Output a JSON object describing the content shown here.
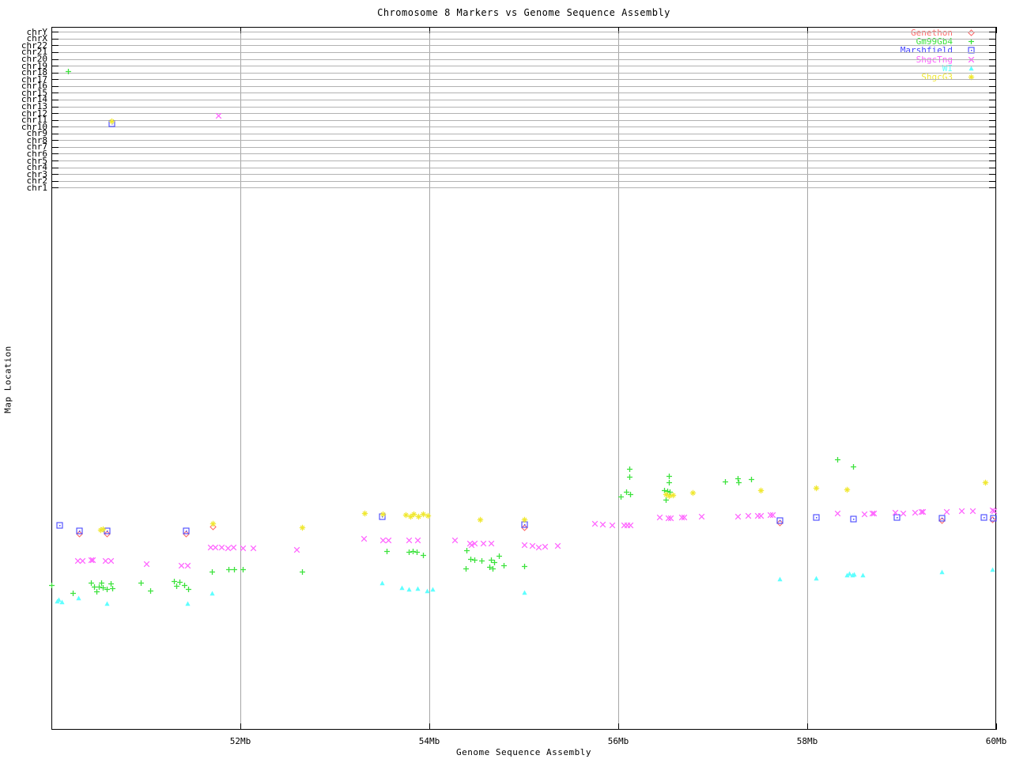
{
  "title": "Chromosome 8 Markers vs Genome Sequence Assembly",
  "axes": {
    "x_label": "Genome Sequence Assembly",
    "y_label": "Map Location",
    "x_ticks": [
      {
        "label": "52Mb",
        "mb": 52,
        "gridline": true
      },
      {
        "label": "54Mb",
        "mb": 54,
        "gridline": true
      },
      {
        "label": "56Mb",
        "mb": 56,
        "gridline": true
      },
      {
        "label": "58Mb",
        "mb": 58,
        "gridline": true
      },
      {
        "label": "60Mb",
        "mb": 60,
        "gridline": false
      }
    ],
    "x_range_mb": [
      50,
      60
    ]
  },
  "chromosome_rows": [
    "chrY",
    "chrX",
    "chr22",
    "chr21",
    "chr20",
    "chr19",
    "chr18",
    "chr17",
    "chr16",
    "chr15",
    "chr14",
    "chr13",
    "chr12",
    "chr11",
    "chr10",
    "chr9",
    "chr8",
    "chr7",
    "chr6",
    "chr5",
    "chr4",
    "chr3",
    "chr2",
    "chr1"
  ],
  "chart_data": {
    "type": "scatter",
    "title": "Chromosome 8 Markers vs Genome Sequence Assembly",
    "xlabel": "Genome Sequence Assembly",
    "ylabel": "Map Location",
    "x_unit": "Mb",
    "y_unit": "screen-px (lower map-location region has no numeric scale in image)",
    "xlim": [
      50,
      60
    ],
    "legend_position": "top-right",
    "grid": "24 horizontal chromosome rows at top; vertical gridlines every 2Mb",
    "series": [
      {
        "name": "Genethon",
        "marker": "diamond",
        "color": "#ff6b6b",
        "points": [
          [
            50.3,
            675
          ],
          [
            50.59,
            675
          ],
          [
            51.43,
            675
          ],
          [
            51.71,
            666
          ],
          [
            55.01,
            667
          ],
          [
            57.71,
            661
          ],
          [
            59.43,
            658
          ],
          [
            59.96,
            657
          ]
        ]
      },
      {
        "name": "Gm99Gb4",
        "marker": "plus",
        "color": "#3ce23c",
        "points": [
          [
            50.18,
            90
          ],
          [
            50.0,
            740
          ],
          [
            50.23,
            750
          ],
          [
            50.42,
            737
          ],
          [
            50.46,
            742
          ],
          [
            50.48,
            748
          ],
          [
            50.51,
            742
          ],
          [
            50.53,
            737
          ],
          [
            50.55,
            743
          ],
          [
            50.59,
            745
          ],
          [
            50.63,
            738
          ],
          [
            50.65,
            744
          ],
          [
            50.95,
            737
          ],
          [
            51.05,
            747
          ],
          [
            51.3,
            735
          ],
          [
            51.33,
            741
          ],
          [
            51.36,
            736
          ],
          [
            51.41,
            740
          ],
          [
            51.45,
            745
          ],
          [
            51.7,
            723
          ],
          [
            51.88,
            720
          ],
          [
            51.94,
            720
          ],
          [
            52.03,
            720
          ],
          [
            52.66,
            723
          ],
          [
            53.55,
            697
          ],
          [
            53.79,
            698
          ],
          [
            53.83,
            697
          ],
          [
            53.87,
            698
          ],
          [
            53.94,
            702
          ],
          [
            54.39,
            719
          ],
          [
            54.4,
            696
          ],
          [
            54.44,
            707
          ],
          [
            54.48,
            708
          ],
          [
            54.56,
            709
          ],
          [
            54.64,
            717
          ],
          [
            54.66,
            708
          ],
          [
            54.67,
            719
          ],
          [
            54.69,
            711
          ],
          [
            54.74,
            703
          ],
          [
            54.79,
            715
          ],
          [
            55.01,
            716
          ],
          [
            56.03,
            628
          ],
          [
            56.09,
            622
          ],
          [
            56.12,
            593
          ],
          [
            56.12,
            603
          ],
          [
            56.13,
            625
          ],
          [
            56.49,
            620
          ],
          [
            56.51,
            632
          ],
          [
            56.52,
            621
          ],
          [
            56.54,
            602
          ],
          [
            56.54,
            610
          ],
          [
            56.55,
            622
          ],
          [
            57.13,
            609
          ],
          [
            57.27,
            605
          ],
          [
            57.28,
            610
          ],
          [
            57.41,
            606
          ],
          [
            58.32,
            581
          ],
          [
            58.49,
            590
          ]
        ]
      },
      {
        "name": "Marshfield",
        "marker": "square-dot",
        "color": "#4646ff",
        "points": [
          [
            50.09,
            664
          ],
          [
            50.3,
            671
          ],
          [
            50.59,
            671
          ],
          [
            50.64,
            156
          ],
          [
            51.43,
            671
          ],
          [
            53.5,
            653
          ],
          [
            55.01,
            663
          ],
          [
            57.71,
            658
          ],
          [
            58.1,
            654
          ],
          [
            58.49,
            656
          ],
          [
            58.95,
            654
          ],
          [
            59.43,
            655
          ],
          [
            59.87,
            654
          ],
          [
            59.97,
            655
          ]
        ]
      },
      {
        "name": "ShgcTng",
        "marker": "x",
        "color": "#ff5fff",
        "points": [
          [
            51.77,
            146
          ],
          [
            50.28,
            709
          ],
          [
            50.33,
            709
          ],
          [
            50.42,
            708
          ],
          [
            50.44,
            708
          ],
          [
            50.57,
            709
          ],
          [
            50.63,
            709
          ],
          [
            51.01,
            713
          ],
          [
            51.38,
            715
          ],
          [
            51.44,
            715
          ],
          [
            51.69,
            692
          ],
          [
            51.74,
            692
          ],
          [
            51.8,
            692
          ],
          [
            51.87,
            693
          ],
          [
            51.93,
            692
          ],
          [
            52.03,
            693
          ],
          [
            52.14,
            693
          ],
          [
            52.6,
            695
          ],
          [
            53.31,
            681
          ],
          [
            53.51,
            683
          ],
          [
            53.57,
            683
          ],
          [
            53.79,
            683
          ],
          [
            53.88,
            683
          ],
          [
            54.27,
            683
          ],
          [
            54.43,
            687
          ],
          [
            54.45,
            689
          ],
          [
            54.48,
            687
          ],
          [
            54.57,
            687
          ],
          [
            54.66,
            687
          ],
          [
            55.01,
            689
          ],
          [
            55.09,
            690
          ],
          [
            55.16,
            692
          ],
          [
            55.23,
            691
          ],
          [
            55.36,
            690
          ],
          [
            55.75,
            662
          ],
          [
            55.84,
            663
          ],
          [
            55.94,
            664
          ],
          [
            56.06,
            664
          ],
          [
            56.1,
            664
          ],
          [
            56.13,
            664
          ],
          [
            56.44,
            654
          ],
          [
            56.53,
            655
          ],
          [
            56.56,
            655
          ],
          [
            56.67,
            654
          ],
          [
            56.7,
            654
          ],
          [
            56.88,
            653
          ],
          [
            57.27,
            653
          ],
          [
            57.38,
            652
          ],
          [
            57.48,
            652
          ],
          [
            57.51,
            652
          ],
          [
            57.61,
            651
          ],
          [
            57.64,
            651
          ],
          [
            58.32,
            649
          ],
          [
            58.61,
            650
          ],
          [
            58.69,
            649
          ],
          [
            58.71,
            649
          ],
          [
            58.93,
            648
          ],
          [
            59.02,
            649
          ],
          [
            59.14,
            648
          ],
          [
            59.21,
            647
          ],
          [
            59.23,
            647
          ],
          [
            59.48,
            647
          ],
          [
            59.64,
            646
          ],
          [
            59.75,
            646
          ],
          [
            59.96,
            645
          ],
          [
            59.98,
            646
          ]
        ]
      },
      {
        "name": "WI",
        "marker": "triangle",
        "color": "#5fffff",
        "points": [
          [
            50.06,
            760
          ],
          [
            50.08,
            758
          ],
          [
            50.11,
            761
          ],
          [
            50.29,
            756
          ],
          [
            50.59,
            763
          ],
          [
            51.44,
            763
          ],
          [
            51.7,
            750
          ],
          [
            53.5,
            737
          ],
          [
            53.71,
            743
          ],
          [
            53.79,
            745
          ],
          [
            53.88,
            744
          ],
          [
            53.98,
            747
          ],
          [
            54.04,
            745
          ],
          [
            55.01,
            749
          ],
          [
            57.71,
            732
          ],
          [
            58.1,
            731
          ],
          [
            58.42,
            727
          ],
          [
            58.45,
            725
          ],
          [
            58.48,
            727
          ],
          [
            58.5,
            726
          ],
          [
            58.59,
            727
          ],
          [
            59.43,
            723
          ],
          [
            59.96,
            720
          ]
        ]
      },
      {
        "name": "ShgcG3",
        "marker": "star",
        "color": "#f0e832",
        "points": [
          [
            50.52,
            670
          ],
          [
            50.55,
            669
          ],
          [
            50.64,
            153
          ],
          [
            51.71,
            662
          ],
          [
            52.66,
            667
          ],
          [
            53.32,
            649
          ],
          [
            53.51,
            650
          ],
          [
            53.75,
            651
          ],
          [
            53.8,
            653
          ],
          [
            53.84,
            650
          ],
          [
            53.89,
            653
          ],
          [
            53.94,
            650
          ],
          [
            53.99,
            652
          ],
          [
            54.54,
            657
          ],
          [
            55.01,
            657
          ],
          [
            56.51,
            625
          ],
          [
            56.54,
            627
          ],
          [
            56.58,
            626
          ],
          [
            56.79,
            623
          ],
          [
            57.51,
            620
          ],
          [
            58.1,
            617
          ],
          [
            58.42,
            619
          ],
          [
            59.89,
            610
          ]
        ]
      }
    ],
    "chromosome_band_hits": [
      {
        "series": "Gm99Gb4",
        "chromosome": "chr18",
        "x_mb": 50.18
      },
      {
        "series": "ShgcTng",
        "chromosome": "chr12",
        "x_mb": 51.77
      },
      {
        "series": "ShgcG3",
        "chromosome": "chr11",
        "x_mb": 50.64
      },
      {
        "series": "Marshfield",
        "chromosome": "chr11",
        "x_mb": 50.64
      }
    ]
  }
}
